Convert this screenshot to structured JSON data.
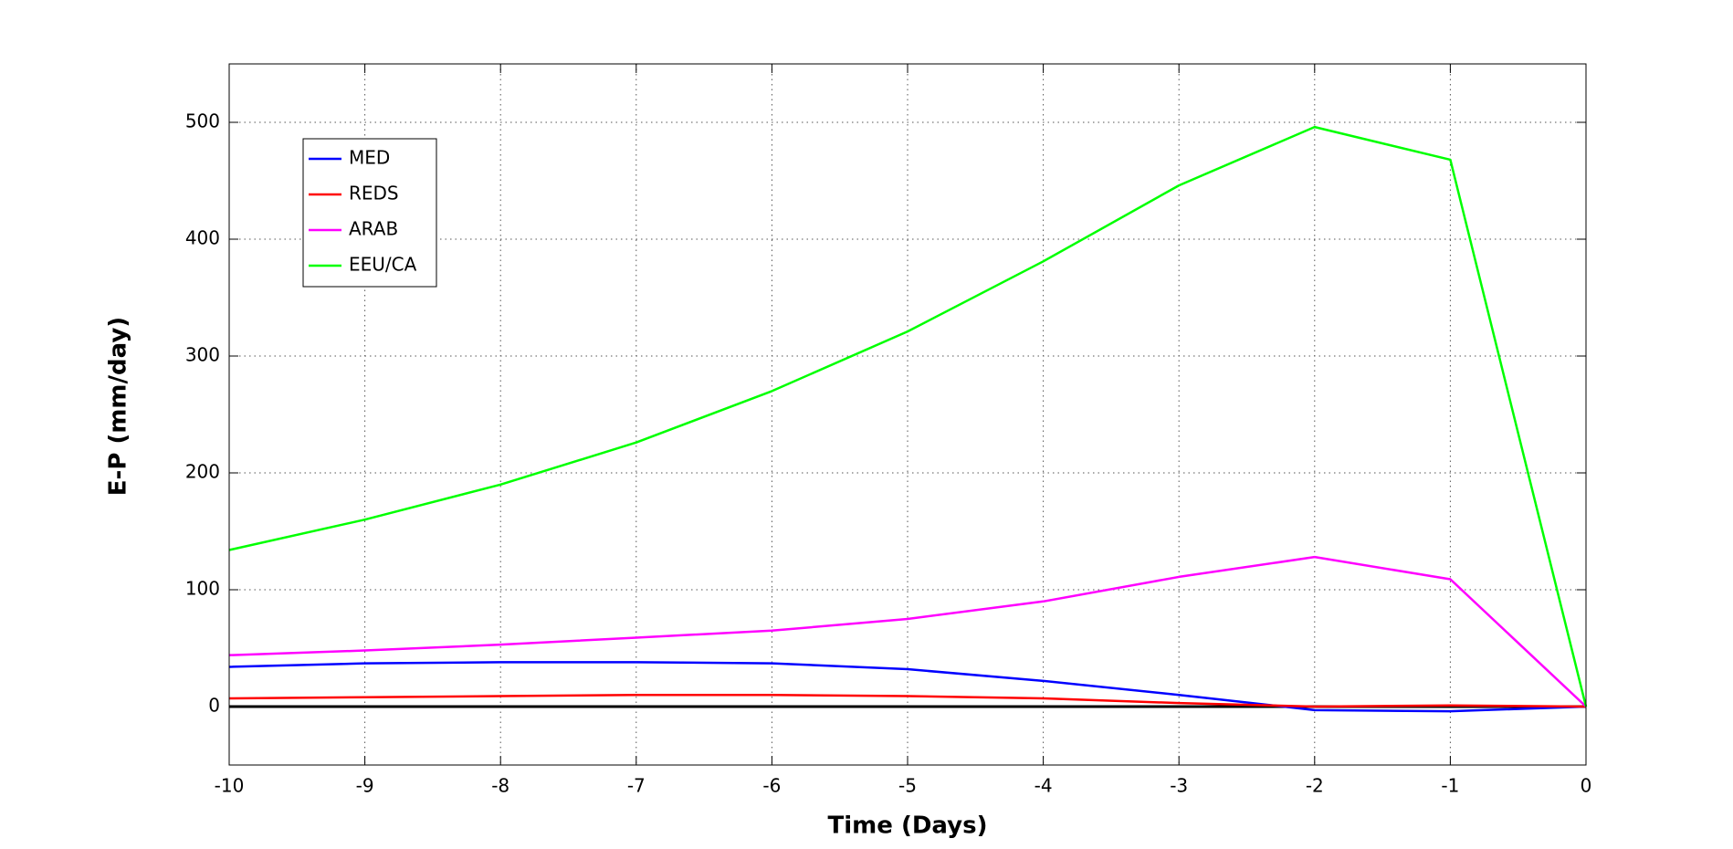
{
  "chart_data": {
    "type": "line",
    "xlabel": "Time (Days)",
    "ylabel": "E-P (mm/day)",
    "x": [
      -10,
      -9,
      -8,
      -7,
      -6,
      -5,
      -4,
      -3,
      -2,
      -1,
      0
    ],
    "series": [
      {
        "name": "MED",
        "color": "#0000ff",
        "values": [
          34,
          37,
          38,
          38,
          37,
          32,
          22,
          10,
          -3,
          -4,
          0
        ]
      },
      {
        "name": "REDS",
        "color": "#ff0000",
        "values": [
          7,
          8,
          9,
          10,
          10,
          9,
          7,
          3,
          0,
          1,
          0
        ]
      },
      {
        "name": "ARAB",
        "color": "#ff00ff",
        "values": [
          44,
          48,
          53,
          59,
          65,
          75,
          90,
          111,
          128,
          109,
          0
        ]
      },
      {
        "name": "EEU/CA",
        "color": "#00ff00",
        "values": [
          134,
          160,
          190,
          226,
          270,
          321,
          381,
          446,
          496,
          468,
          0
        ]
      }
    ],
    "xlim": [
      -10,
      0
    ],
    "xticks": [
      -10,
      -9,
      -8,
      -7,
      -6,
      -5,
      -4,
      -3,
      -2,
      -1,
      0
    ],
    "ylim": [
      -50,
      550
    ],
    "yticks": [
      0,
      100,
      200,
      300,
      400,
      500
    ],
    "grid": true,
    "legend": "upper left"
  }
}
